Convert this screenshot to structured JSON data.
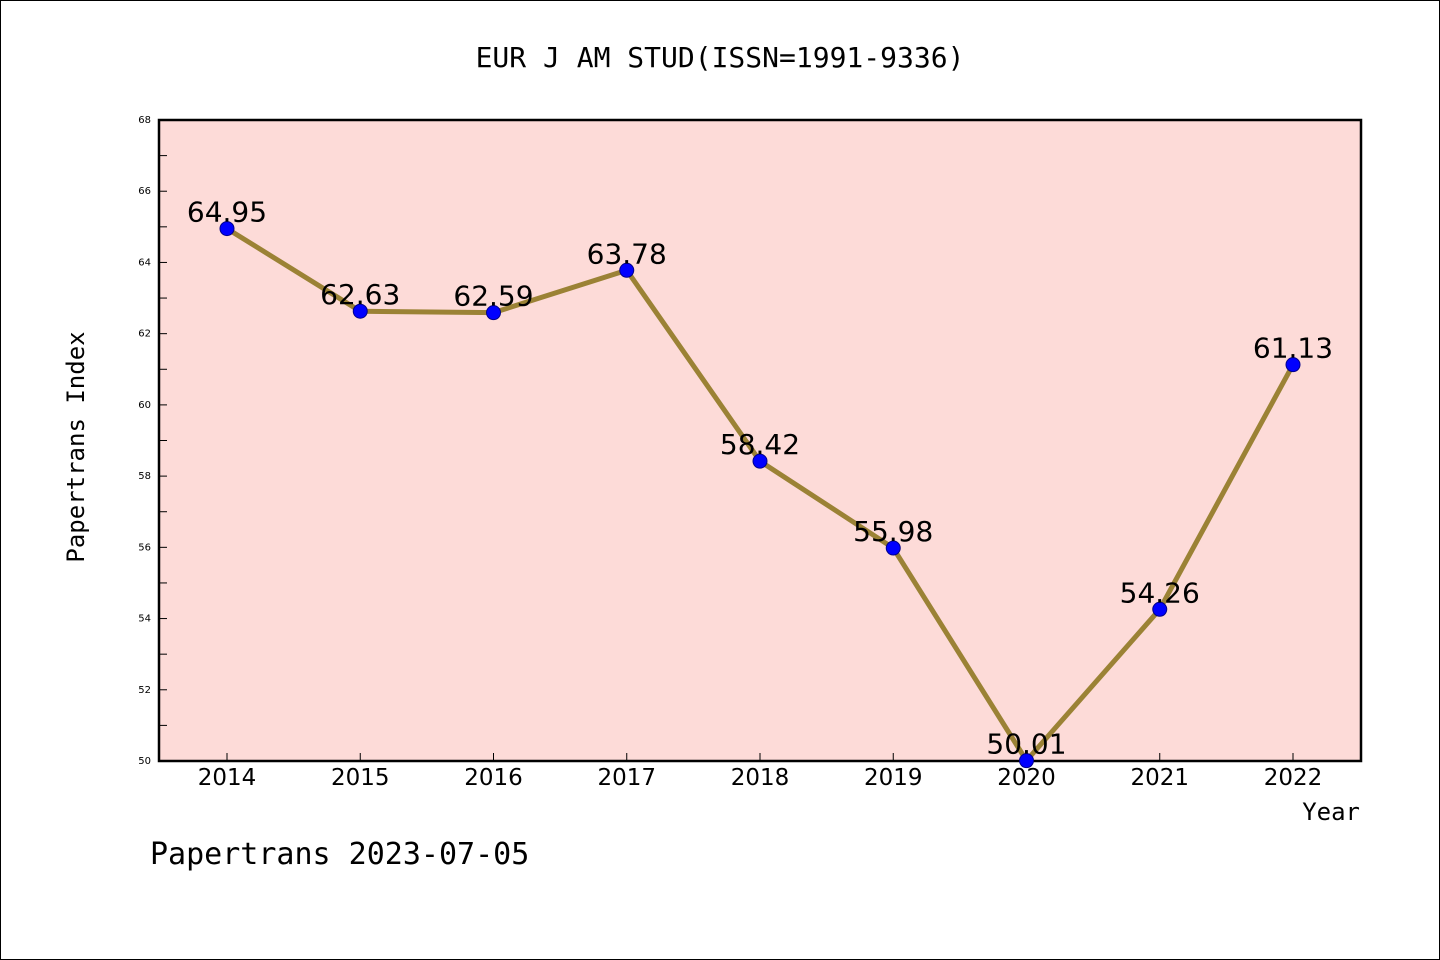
{
  "chart_data": {
    "type": "line",
    "title": "EUR J AM STUD(ISSN=1991-9336)",
    "xlabel": "Year",
    "ylabel": "Papertrans Index",
    "footer": "Papertrans 2023-07-05",
    "categories": [
      "2014",
      "2015",
      "2016",
      "2017",
      "2018",
      "2019",
      "2020",
      "2021",
      "2022"
    ],
    "values": [
      64.95,
      62.63,
      62.59,
      63.78,
      58.42,
      55.98,
      50.01,
      54.26,
      61.13
    ],
    "data_labels": [
      "64.95",
      "62.63",
      "62.59",
      "63.78",
      "58.42",
      "55.98",
      "50.01",
      "54.26",
      "61.13"
    ],
    "ylim": [
      50,
      68
    ],
    "yticks": [
      "50",
      "52",
      "54",
      "56",
      "58",
      "60",
      "62",
      "64",
      "66",
      "68"
    ],
    "grid": false,
    "colors": {
      "plot_background": "#fddbd8",
      "line": "#9b8235",
      "marker": "#0000ff"
    }
  }
}
